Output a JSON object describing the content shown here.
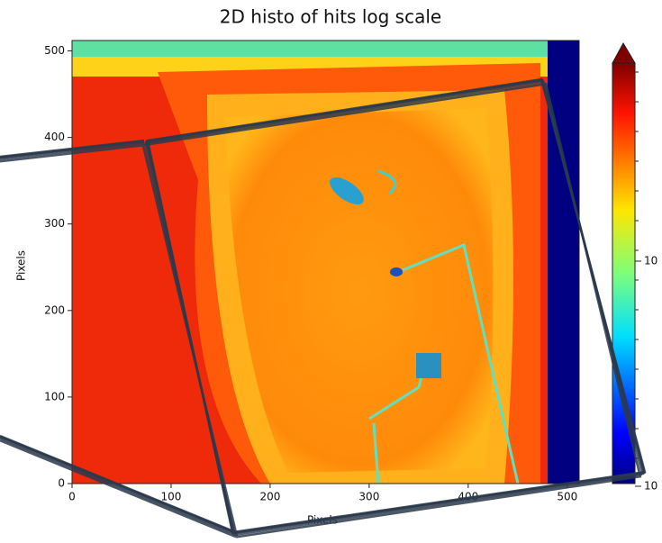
{
  "chart_data": {
    "type": "heatmap",
    "title": "2D histo of hits log scale",
    "xlabel": "Pixels",
    "ylabel": "Pixels",
    "xlim": [
      0,
      512
    ],
    "ylim": [
      0,
      512
    ],
    "xticks": [
      0,
      100,
      200,
      300,
      400,
      500
    ],
    "yticks": [
      0,
      100,
      200,
      300,
      400,
      500
    ],
    "colorbar_tick_labels": [
      "10",
      "10"
    ]
  }
}
